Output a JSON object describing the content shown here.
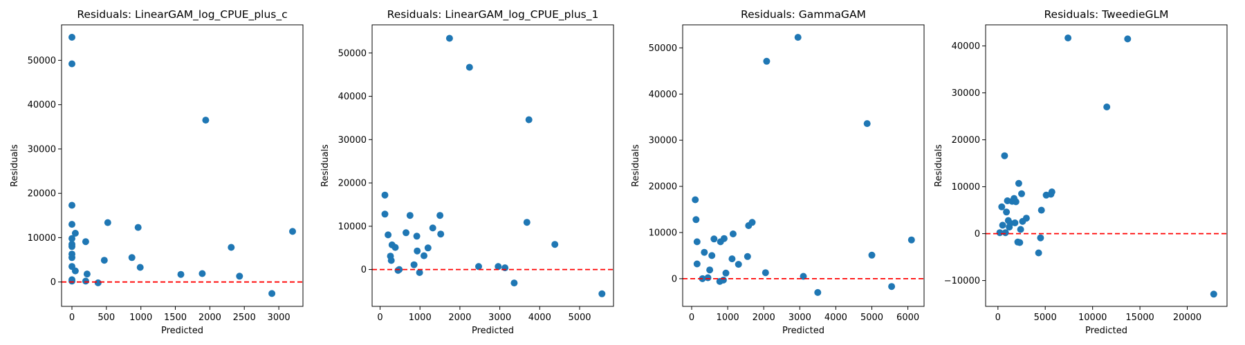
{
  "chart_data": [
    {
      "type": "scatter",
      "title": "Residuals: LinearGAM_log_CPUE_plus_c",
      "xlabel": "Predicted",
      "ylabel": "Residuals",
      "xlim": [
        -150,
        3350
      ],
      "ylim": [
        -5500,
        58000
      ],
      "xticks": [
        0,
        500,
        1000,
        1500,
        2000,
        2500,
        3000
      ],
      "yticks": [
        0,
        10000,
        20000,
        30000,
        40000,
        50000
      ],
      "reference_line_y": 0,
      "colors": {
        "points": "#1f77b4",
        "reference_line": "#ff0000"
      },
      "points": [
        {
          "x": 0,
          "y": 55200
        },
        {
          "x": 0,
          "y": 49200
        },
        {
          "x": 0,
          "y": 17300
        },
        {
          "x": 0,
          "y": 13000
        },
        {
          "x": 0,
          "y": 9800
        },
        {
          "x": 0,
          "y": 8500
        },
        {
          "x": 0,
          "y": 8000
        },
        {
          "x": 0,
          "y": 6300
        },
        {
          "x": 0,
          "y": 5500
        },
        {
          "x": 0,
          "y": 3500
        },
        {
          "x": 0,
          "y": 500
        },
        {
          "x": 0,
          "y": 200
        },
        {
          "x": 50,
          "y": 11000
        },
        {
          "x": 50,
          "y": 2500
        },
        {
          "x": 200,
          "y": 9100
        },
        {
          "x": 220,
          "y": 1800
        },
        {
          "x": 200,
          "y": 200
        },
        {
          "x": 380,
          "y": -200
        },
        {
          "x": 470,
          "y": 4900
        },
        {
          "x": 520,
          "y": 13400
        },
        {
          "x": 870,
          "y": 5500
        },
        {
          "x": 960,
          "y": 12300
        },
        {
          "x": 990,
          "y": 3300
        },
        {
          "x": 1580,
          "y": 1700
        },
        {
          "x": 1890,
          "y": 1900
        },
        {
          "x": 1940,
          "y": 36500
        },
        {
          "x": 2310,
          "y": 7800
        },
        {
          "x": 2430,
          "y": 1300
        },
        {
          "x": 2900,
          "y": -2600
        },
        {
          "x": 3200,
          "y": 11400
        }
      ]
    },
    {
      "type": "scatter",
      "title": "Residuals: LinearGAM_log_CPUE_plus_1",
      "xlabel": "Predicted",
      "ylabel": "Residuals",
      "xlim": [
        -200,
        5850
      ],
      "ylim": [
        -8500,
        56500
      ],
      "xticks": [
        0,
        1000,
        2000,
        3000,
        4000,
        5000
      ],
      "yticks": [
        0,
        10000,
        20000,
        30000,
        40000,
        50000
      ],
      "reference_line_y": 0,
      "colors": {
        "points": "#1f77b4",
        "reference_line": "#ff0000"
      },
      "points": [
        {
          "x": 120,
          "y": 17200
        },
        {
          "x": 120,
          "y": 12800
        },
        {
          "x": 200,
          "y": 8000
        },
        {
          "x": 260,
          "y": 3100
        },
        {
          "x": 280,
          "y": 2100
        },
        {
          "x": 300,
          "y": 5700
        },
        {
          "x": 380,
          "y": 5100
        },
        {
          "x": 450,
          "y": -200
        },
        {
          "x": 480,
          "y": 0
        },
        {
          "x": 650,
          "y": 8500
        },
        {
          "x": 750,
          "y": 12500
        },
        {
          "x": 850,
          "y": 1100
        },
        {
          "x": 920,
          "y": 7700
        },
        {
          "x": 930,
          "y": 4300
        },
        {
          "x": 990,
          "y": -700
        },
        {
          "x": 1100,
          "y": 3200
        },
        {
          "x": 1200,
          "y": 5000
        },
        {
          "x": 1320,
          "y": 9600
        },
        {
          "x": 1500,
          "y": 12500
        },
        {
          "x": 1520,
          "y": 8200
        },
        {
          "x": 1740,
          "y": 53400
        },
        {
          "x": 2240,
          "y": 46700
        },
        {
          "x": 2470,
          "y": 700
        },
        {
          "x": 2960,
          "y": 700
        },
        {
          "x": 3130,
          "y": 400
        },
        {
          "x": 3360,
          "y": -3100
        },
        {
          "x": 3680,
          "y": 10900
        },
        {
          "x": 3730,
          "y": 34600
        },
        {
          "x": 4380,
          "y": 5800
        },
        {
          "x": 5560,
          "y": -5600
        }
      ]
    },
    {
      "type": "scatter",
      "title": "Residuals: GammaGAM",
      "xlabel": "Predicted",
      "ylabel": "Residuals",
      "xlim": [
        -250,
        6450
      ],
      "ylim": [
        -6000,
        55000
      ],
      "xticks": [
        0,
        1000,
        2000,
        3000,
        4000,
        5000,
        6000
      ],
      "yticks": [
        0,
        10000,
        20000,
        30000,
        40000,
        50000
      ],
      "reference_line_y": 0,
      "colors": {
        "points": "#1f77b4",
        "reference_line": "#ff0000"
      },
      "points": [
        {
          "x": 100,
          "y": 17100
        },
        {
          "x": 120,
          "y": 12800
        },
        {
          "x": 150,
          "y": 8000
        },
        {
          "x": 150,
          "y": 3200
        },
        {
          "x": 300,
          "y": 0
        },
        {
          "x": 350,
          "y": 5700
        },
        {
          "x": 450,
          "y": 200
        },
        {
          "x": 500,
          "y": 1900
        },
        {
          "x": 560,
          "y": 5000
        },
        {
          "x": 620,
          "y": 8600
        },
        {
          "x": 780,
          "y": -600
        },
        {
          "x": 800,
          "y": 8000
        },
        {
          "x": 880,
          "y": -300
        },
        {
          "x": 900,
          "y": 8700
        },
        {
          "x": 950,
          "y": 1200
        },
        {
          "x": 1120,
          "y": 4300
        },
        {
          "x": 1150,
          "y": 9700
        },
        {
          "x": 1300,
          "y": 3100
        },
        {
          "x": 1550,
          "y": 4800
        },
        {
          "x": 1580,
          "y": 11500
        },
        {
          "x": 1680,
          "y": 12200
        },
        {
          "x": 2050,
          "y": 1300
        },
        {
          "x": 2080,
          "y": 47100
        },
        {
          "x": 2950,
          "y": 52300
        },
        {
          "x": 3100,
          "y": 500
        },
        {
          "x": 3500,
          "y": -3000
        },
        {
          "x": 4870,
          "y": 33600
        },
        {
          "x": 5000,
          "y": 5100
        },
        {
          "x": 5550,
          "y": -1700
        },
        {
          "x": 6100,
          "y": 8400
        }
      ]
    },
    {
      "type": "scatter",
      "title": "Residuals: TweedieGLM",
      "xlabel": "Predicted",
      "ylabel": "Residuals",
      "xlim": [
        -1300,
        24200
      ],
      "ylim": [
        -15500,
        44500
      ],
      "xticks": [
        0,
        5000,
        10000,
        15000,
        20000
      ],
      "yticks": [
        -10000,
        0,
        10000,
        20000,
        30000,
        40000
      ],
      "reference_line_y": 0,
      "colors": {
        "points": "#1f77b4",
        "reference_line": "#ff0000"
      },
      "points": [
        {
          "x": 200,
          "y": 200
        },
        {
          "x": 400,
          "y": 5700
        },
        {
          "x": 500,
          "y": 1800
        },
        {
          "x": 700,
          "y": 16600
        },
        {
          "x": 800,
          "y": 200
        },
        {
          "x": 900,
          "y": 4600
        },
        {
          "x": 1000,
          "y": 7000
        },
        {
          "x": 1100,
          "y": 2800
        },
        {
          "x": 1200,
          "y": 1400
        },
        {
          "x": 1300,
          "y": 2200
        },
        {
          "x": 1500,
          "y": 6900
        },
        {
          "x": 1700,
          "y": 7500
        },
        {
          "x": 1800,
          "y": 2300
        },
        {
          "x": 1900,
          "y": 6800
        },
        {
          "x": 2100,
          "y": -1800
        },
        {
          "x": 2200,
          "y": 10700
        },
        {
          "x": 2300,
          "y": -1900
        },
        {
          "x": 2400,
          "y": 900
        },
        {
          "x": 2500,
          "y": 8500
        },
        {
          "x": 2600,
          "y": 2600
        },
        {
          "x": 3000,
          "y": 3300
        },
        {
          "x": 4300,
          "y": -4100
        },
        {
          "x": 4500,
          "y": -900
        },
        {
          "x": 4600,
          "y": 5000
        },
        {
          "x": 5100,
          "y": 8200
        },
        {
          "x": 5600,
          "y": 8400
        },
        {
          "x": 5700,
          "y": 8900
        },
        {
          "x": 7400,
          "y": 41700
        },
        {
          "x": 11500,
          "y": 27000
        },
        {
          "x": 13700,
          "y": 41500
        },
        {
          "x": 22800,
          "y": -12900
        }
      ]
    }
  ]
}
